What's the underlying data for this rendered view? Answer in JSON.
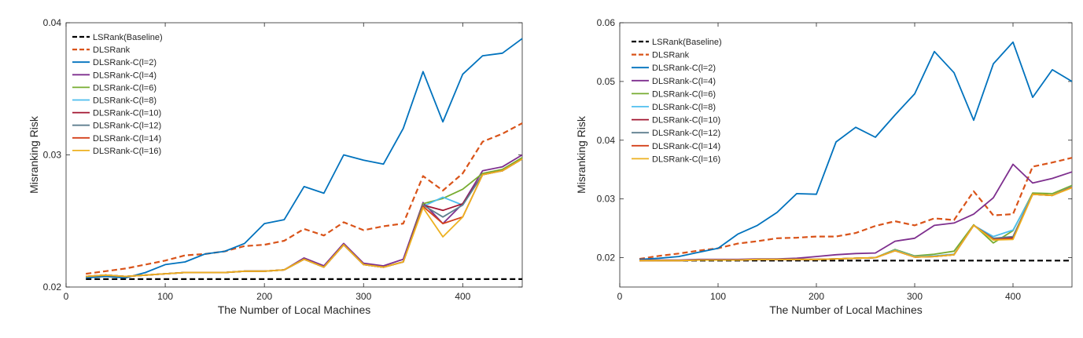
{
  "chart_data": [
    {
      "type": "line",
      "xlabel": "The Number of Local Machines",
      "ylabel": "Misranking Risk",
      "xlim": [
        0,
        460
      ],
      "ylim": [
        0.02,
        0.04
      ],
      "xticks": [
        0,
        100,
        200,
        300,
        400
      ],
      "yticks": [
        0.02,
        0.03,
        0.04
      ],
      "ytick_labels": [
        "0.02",
        "0.03",
        "0.04"
      ],
      "legend_position": "top-left",
      "x": [
        20,
        40,
        60,
        80,
        100,
        120,
        140,
        160,
        180,
        200,
        220,
        240,
        260,
        280,
        300,
        320,
        340,
        360,
        380,
        400,
        420,
        440,
        460
      ],
      "series": [
        {
          "name": "LSRank(Baseline)",
          "color": "#000000",
          "dash": "dashed",
          "values": [
            0.0206,
            0.0206,
            0.0206,
            0.0206,
            0.0206,
            0.0206,
            0.0206,
            0.0206,
            0.0206,
            0.0206,
            0.0206,
            0.0206,
            0.0206,
            0.0206,
            0.0206,
            0.0206,
            0.0206,
            0.0206,
            0.0206,
            0.0206,
            0.0206,
            0.0206,
            0.0206
          ]
        },
        {
          "name": "DLSRank",
          "color": "#D95319",
          "dash": "dashed",
          "values": [
            0.021,
            0.0212,
            0.0214,
            0.0217,
            0.022,
            0.0224,
            0.0225,
            0.0227,
            0.0231,
            0.0232,
            0.0235,
            0.0244,
            0.0239,
            0.0249,
            0.0243,
            0.0246,
            0.0248,
            0.0284,
            0.0273,
            0.0286,
            0.031,
            0.0316,
            0.0324
          ]
        },
        {
          "name": "DLSRank-C(l=2)",
          "color": "#0072BD",
          "dash": "solid",
          "values": [
            0.0207,
            0.0208,
            0.0207,
            0.0211,
            0.0217,
            0.0219,
            0.0225,
            0.0227,
            0.0233,
            0.0248,
            0.0251,
            0.0276,
            0.0271,
            0.03,
            0.0296,
            0.0293,
            0.032,
            0.0363,
            0.0325,
            0.0361,
            0.0375,
            0.0377,
            0.0388
          ]
        },
        {
          "name": "DLSRank-C(l=4)",
          "color": "#7E2F8E",
          "dash": "solid",
          "values": [
            0.0208,
            0.0209,
            0.0208,
            0.0209,
            0.021,
            0.0211,
            0.0211,
            0.0211,
            0.0212,
            0.0212,
            0.0213,
            0.0222,
            0.0216,
            0.0233,
            0.0218,
            0.0216,
            0.0221,
            0.0264,
            0.0248,
            0.0263,
            0.0288,
            0.0291,
            0.03
          ]
        },
        {
          "name": "DLSRank-C(l=6)",
          "color": "#77AC30",
          "dash": "solid",
          "values": [
            0.0208,
            0.0209,
            0.0208,
            0.0209,
            0.021,
            0.0211,
            0.0211,
            0.0211,
            0.0212,
            0.0212,
            0.0213,
            0.0221,
            0.0215,
            0.0232,
            0.0217,
            0.0215,
            0.0219,
            0.0263,
            0.0267,
            0.0274,
            0.0286,
            0.0289,
            0.0298
          ]
        },
        {
          "name": "DLSRank-C(l=8)",
          "color": "#4DBEEE",
          "dash": "solid",
          "values": [
            0.0208,
            0.0209,
            0.0208,
            0.0209,
            0.021,
            0.0211,
            0.0211,
            0.0211,
            0.0212,
            0.0212,
            0.0213,
            0.0221,
            0.0215,
            0.0232,
            0.0217,
            0.0215,
            0.0219,
            0.0261,
            0.0268,
            0.0262,
            0.0285,
            0.0288,
            0.0297
          ]
        },
        {
          "name": "DLSRank-C(l=10)",
          "color": "#A2142F",
          "dash": "solid",
          "values": [
            0.0208,
            0.0209,
            0.0208,
            0.0209,
            0.021,
            0.0211,
            0.0211,
            0.0211,
            0.0212,
            0.0212,
            0.0213,
            0.0221,
            0.0215,
            0.0232,
            0.0217,
            0.0215,
            0.0219,
            0.0262,
            0.0258,
            0.0263,
            0.0285,
            0.0288,
            0.0297
          ]
        },
        {
          "name": "DLSRank-C(l=12)",
          "color": "#5F7F8F",
          "dash": "solid",
          "values": [
            0.0208,
            0.0209,
            0.0208,
            0.0209,
            0.021,
            0.0211,
            0.0211,
            0.0211,
            0.0212,
            0.0212,
            0.0213,
            0.0221,
            0.0215,
            0.0232,
            0.0217,
            0.0215,
            0.0219,
            0.0262,
            0.0253,
            0.0262,
            0.0285,
            0.0288,
            0.0297
          ]
        },
        {
          "name": "DLSRank-C(l=14)",
          "color": "#D4401A",
          "dash": "solid",
          "values": [
            0.0208,
            0.0209,
            0.0208,
            0.0209,
            0.021,
            0.0211,
            0.0211,
            0.0211,
            0.0212,
            0.0212,
            0.0213,
            0.0221,
            0.0215,
            0.0232,
            0.0217,
            0.0215,
            0.0219,
            0.0261,
            0.0248,
            0.0253,
            0.0285,
            0.0288,
            0.0297
          ]
        },
        {
          "name": "DLSRank-C(l=16)",
          "color": "#EDB120",
          "dash": "solid",
          "values": [
            0.0208,
            0.0209,
            0.0208,
            0.0209,
            0.021,
            0.0211,
            0.0211,
            0.0211,
            0.0212,
            0.0212,
            0.0213,
            0.0221,
            0.0215,
            0.0232,
            0.0217,
            0.0215,
            0.0219,
            0.026,
            0.0238,
            0.0253,
            0.0285,
            0.0288,
            0.0297
          ]
        }
      ]
    },
    {
      "type": "line",
      "xlabel": "The Number of Local Machines",
      "ylabel": "Misranking Risk",
      "xlim": [
        0,
        460
      ],
      "ylim": [
        0.015,
        0.06
      ],
      "xticks": [
        0,
        100,
        200,
        300,
        400
      ],
      "yticks": [
        0.02,
        0.03,
        0.04,
        0.05,
        0.06
      ],
      "ytick_labels": [
        "0.02",
        "0.03",
        "0.04",
        "0.05",
        "0.06"
      ],
      "legend_position": "top-left",
      "x": [
        20,
        40,
        60,
        80,
        100,
        120,
        140,
        160,
        180,
        200,
        220,
        240,
        260,
        280,
        300,
        320,
        340,
        360,
        380,
        400,
        420,
        440,
        460
      ],
      "series": [
        {
          "name": "LSRank(Baseline)",
          "color": "#000000",
          "dash": "dashed",
          "values": [
            0.0195,
            0.0195,
            0.0195,
            0.0195,
            0.0195,
            0.0195,
            0.0195,
            0.0195,
            0.0195,
            0.0195,
            0.0195,
            0.0195,
            0.0195,
            0.0195,
            0.0195,
            0.0195,
            0.0195,
            0.0195,
            0.0195,
            0.0195,
            0.0195,
            0.0195,
            0.0195
          ]
        },
        {
          "name": "DLSRank",
          "color": "#D95319",
          "dash": "dashed",
          "values": [
            0.0198,
            0.0203,
            0.0207,
            0.0212,
            0.0216,
            0.0224,
            0.0228,
            0.0233,
            0.0234,
            0.0236,
            0.0236,
            0.0242,
            0.0254,
            0.0262,
            0.0255,
            0.0267,
            0.0264,
            0.0313,
            0.0272,
            0.0274,
            0.0355,
            0.0362,
            0.037
          ]
        },
        {
          "name": "DLSRank-C(l=2)",
          "color": "#0072BD",
          "dash": "solid",
          "values": [
            0.0197,
            0.0199,
            0.0202,
            0.0209,
            0.0216,
            0.024,
            0.0255,
            0.0277,
            0.0309,
            0.0308,
            0.0397,
            0.0422,
            0.0405,
            0.0443,
            0.0479,
            0.0551,
            0.0515,
            0.0434,
            0.053,
            0.0567,
            0.0473,
            0.052,
            0.05
          ]
        },
        {
          "name": "DLSRank-C(l=4)",
          "color": "#7E2F8E",
          "dash": "solid",
          "values": [
            0.0196,
            0.0196,
            0.0196,
            0.0197,
            0.0197,
            0.0197,
            0.0198,
            0.0198,
            0.0199,
            0.0202,
            0.0205,
            0.0207,
            0.0208,
            0.0228,
            0.0233,
            0.0255,
            0.0259,
            0.0274,
            0.0302,
            0.0359,
            0.0327,
            0.0335,
            0.0346
          ]
        },
        {
          "name": "DLSRank-C(l=6)",
          "color": "#77AC30",
          "dash": "solid",
          "values": [
            0.0195,
            0.0195,
            0.0195,
            0.0196,
            0.0196,
            0.0196,
            0.0197,
            0.0197,
            0.0197,
            0.0197,
            0.0198,
            0.0199,
            0.02,
            0.0214,
            0.0203,
            0.0206,
            0.0211,
            0.0256,
            0.0225,
            0.0246,
            0.031,
            0.0309,
            0.0323
          ]
        },
        {
          "name": "DLSRank-C(l=8)",
          "color": "#4DBEEE",
          "dash": "solid",
          "values": [
            0.0195,
            0.0195,
            0.0195,
            0.0196,
            0.0196,
            0.0196,
            0.0197,
            0.0197,
            0.0197,
            0.0197,
            0.0198,
            0.0199,
            0.02,
            0.0213,
            0.0202,
            0.0203,
            0.0206,
            0.0255,
            0.0236,
            0.0247,
            0.0308,
            0.0306,
            0.0321
          ]
        },
        {
          "name": "DLSRank-C(l=10)",
          "color": "#A2142F",
          "dash": "solid",
          "values": [
            0.0195,
            0.0195,
            0.0195,
            0.0196,
            0.0196,
            0.0196,
            0.0197,
            0.0197,
            0.0197,
            0.0197,
            0.0198,
            0.0199,
            0.02,
            0.0212,
            0.0201,
            0.0202,
            0.0205,
            0.0255,
            0.0232,
            0.0234,
            0.0308,
            0.0306,
            0.032
          ]
        },
        {
          "name": "DLSRank-C(l=12)",
          "color": "#5F7F8F",
          "dash": "solid",
          "values": [
            0.0195,
            0.0195,
            0.0195,
            0.0196,
            0.0196,
            0.0196,
            0.0197,
            0.0197,
            0.0197,
            0.0197,
            0.0198,
            0.0199,
            0.02,
            0.0212,
            0.0201,
            0.0202,
            0.0205,
            0.0255,
            0.0233,
            0.0236,
            0.0308,
            0.0306,
            0.032
          ]
        },
        {
          "name": "DLSRank-C(l=14)",
          "color": "#D4401A",
          "dash": "solid",
          "values": [
            0.0195,
            0.0195,
            0.0195,
            0.0196,
            0.0196,
            0.0196,
            0.0197,
            0.0197,
            0.0197,
            0.0197,
            0.0198,
            0.0199,
            0.02,
            0.0212,
            0.0201,
            0.0202,
            0.0205,
            0.0255,
            0.0231,
            0.0232,
            0.0308,
            0.0306,
            0.032
          ]
        },
        {
          "name": "DLSRank-C(l=16)",
          "color": "#EDB120",
          "dash": "solid",
          "values": [
            0.0195,
            0.0195,
            0.0195,
            0.0196,
            0.0196,
            0.0196,
            0.0197,
            0.0197,
            0.0197,
            0.0197,
            0.0198,
            0.0199,
            0.02,
            0.0212,
            0.0201,
            0.0202,
            0.0205,
            0.0255,
            0.023,
            0.0231,
            0.0308,
            0.0306,
            0.0319
          ]
        }
      ]
    }
  ]
}
